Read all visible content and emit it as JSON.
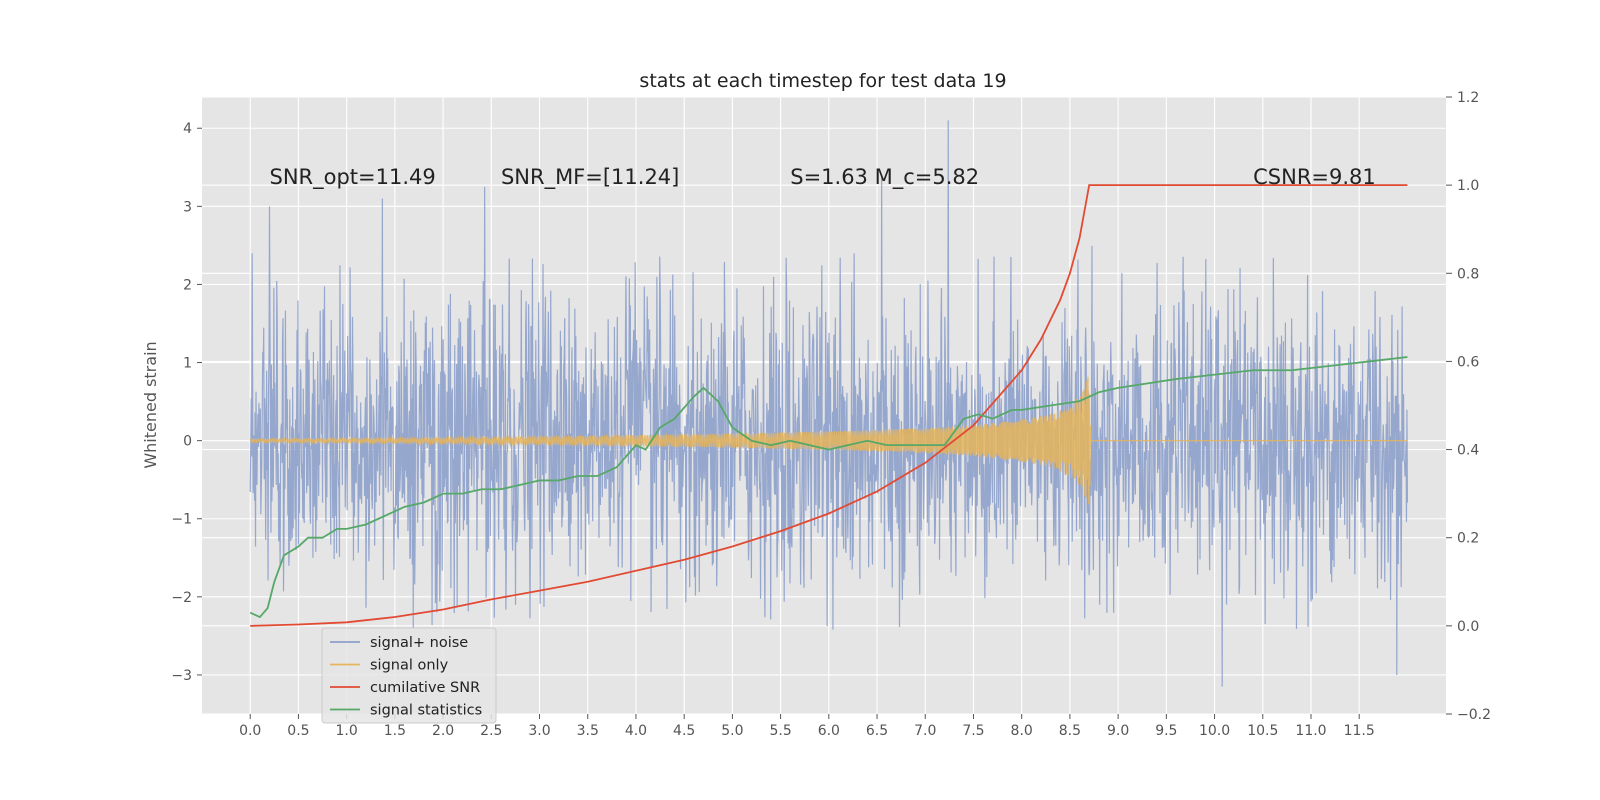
{
  "chart_data": {
    "type": "line",
    "title": "stats at each timestep for test data 19",
    "ylabel": "Whitened strain",
    "xlim": [
      -0.5,
      12.4
    ],
    "ylim": [
      -3.5,
      4.4
    ],
    "y2lim": [
      -0.2,
      1.2
    ],
    "x_ticks": [
      0.0,
      0.5,
      1.0,
      1.5,
      2.0,
      2.5,
      3.0,
      3.5,
      4.0,
      4.5,
      5.0,
      5.5,
      6.0,
      6.5,
      7.0,
      7.5,
      8.0,
      8.5,
      9.0,
      9.5,
      10.0,
      10.5,
      11.0,
      11.5
    ],
    "x_tick_labels": [
      "0.0",
      "0.5",
      "1.0",
      "1.5",
      "2.0",
      "2.5",
      "3.0",
      "3.5",
      "4.0",
      "4.5",
      "5.0",
      "5.5",
      "6.0",
      "6.5",
      "7.0",
      "7.5",
      "8.0",
      "8.5",
      "9.0",
      "9.5",
      "10.0",
      "10.5",
      "11.0",
      "11.5"
    ],
    "y_ticks": [
      -3,
      -2,
      -1,
      0,
      1,
      2,
      3,
      4
    ],
    "y_tick_labels": [
      "−3",
      "−2",
      "−1",
      "0",
      "1",
      "2",
      "3",
      "4"
    ],
    "y2_ticks": [
      -0.2,
      0.0,
      0.2,
      0.4,
      0.6,
      0.8,
      1.0,
      1.2
    ],
    "y2_tick_labels": [
      "−0.2",
      "0.0",
      "0.2",
      "0.4",
      "0.6",
      "0.8",
      "1.0",
      "1.2"
    ],
    "grid": true,
    "legend_placement": "lower-left",
    "annotations": [
      {
        "text": "SNR_opt=11.49",
        "x": 0.2,
        "y": 3.3
      },
      {
        "text": "SNR_MF=[11.24]",
        "x": 2.6,
        "y": 3.3
      },
      {
        "text": "S=1.63  M_c=5.82",
        "x": 5.6,
        "y": 3.3
      },
      {
        "text": "CSNR=9.81",
        "x": 10.4,
        "y": 3.3
      }
    ],
    "series": [
      {
        "name": "signal+ noise",
        "axis": "left",
        "color": "#8da0cb",
        "x_range": [
          0.0,
          12.0
        ],
        "typical_amplitude": 1.1,
        "peak_values": [
          [
            1.37,
            3.1
          ],
          [
            2.43,
            3.25
          ],
          [
            6.55,
            3.4
          ],
          [
            7.24,
            4.1
          ],
          [
            10.08,
            -3.15
          ],
          [
            11.89,
            -3.0
          ],
          [
            0.02,
            2.4
          ],
          [
            0.2,
            3.0
          ]
        ]
      },
      {
        "name": "signal only",
        "axis": "left",
        "color": "#e5b45a",
        "x": [
          0.0,
          1.0,
          2.0,
          3.0,
          4.0,
          5.0,
          6.0,
          7.0,
          7.5,
          8.0,
          8.3,
          8.5,
          8.62,
          8.7,
          8.72,
          12.0
        ],
        "envelope": [
          0.02,
          0.025,
          0.035,
          0.05,
          0.07,
          0.09,
          0.12,
          0.16,
          0.2,
          0.27,
          0.34,
          0.45,
          0.6,
          0.9,
          0.0,
          0.0
        ]
      },
      {
        "name": "cumilative SNR",
        "axis": "right",
        "color": "#e24a33",
        "x": [
          0.0,
          0.5,
          1.0,
          1.5,
          2.0,
          2.5,
          3.0,
          3.5,
          4.0,
          4.5,
          5.0,
          5.5,
          6.0,
          6.5,
          7.0,
          7.5,
          8.0,
          8.2,
          8.4,
          8.5,
          8.6,
          8.7,
          12.0
        ],
        "values": [
          0.0,
          0.003,
          0.008,
          0.02,
          0.037,
          0.06,
          0.08,
          0.1,
          0.125,
          0.15,
          0.18,
          0.215,
          0.255,
          0.305,
          0.37,
          0.455,
          0.58,
          0.65,
          0.74,
          0.8,
          0.88,
          1.0,
          1.0
        ]
      },
      {
        "name": "signal statistics",
        "axis": "right",
        "color": "#55a868",
        "x": [
          0.0,
          0.1,
          0.18,
          0.25,
          0.35,
          0.5,
          0.6,
          0.75,
          0.9,
          1.0,
          1.2,
          1.4,
          1.6,
          1.8,
          2.0,
          2.2,
          2.4,
          2.6,
          2.8,
          3.0,
          3.2,
          3.4,
          3.6,
          3.8,
          3.92,
          4.0,
          4.1,
          4.25,
          4.4,
          4.6,
          4.7,
          4.85,
          5.0,
          5.2,
          5.4,
          5.6,
          5.8,
          6.0,
          6.2,
          6.4,
          6.6,
          6.8,
          7.0,
          7.2,
          7.4,
          7.55,
          7.7,
          7.9,
          8.0,
          8.3,
          8.6,
          8.8,
          9.0,
          9.3,
          9.6,
          10.0,
          10.4,
          10.8,
          11.2,
          11.6,
          12.0
        ],
        "values": [
          0.03,
          0.02,
          0.04,
          0.1,
          0.16,
          0.18,
          0.2,
          0.2,
          0.22,
          0.22,
          0.23,
          0.25,
          0.27,
          0.28,
          0.3,
          0.3,
          0.31,
          0.31,
          0.32,
          0.33,
          0.33,
          0.34,
          0.34,
          0.36,
          0.39,
          0.41,
          0.4,
          0.45,
          0.47,
          0.52,
          0.54,
          0.51,
          0.45,
          0.42,
          0.41,
          0.42,
          0.41,
          0.4,
          0.41,
          0.42,
          0.41,
          0.41,
          0.41,
          0.41,
          0.47,
          0.48,
          0.47,
          0.49,
          0.49,
          0.5,
          0.51,
          0.53,
          0.54,
          0.55,
          0.56,
          0.57,
          0.58,
          0.58,
          0.59,
          0.6,
          0.61
        ]
      }
    ]
  }
}
